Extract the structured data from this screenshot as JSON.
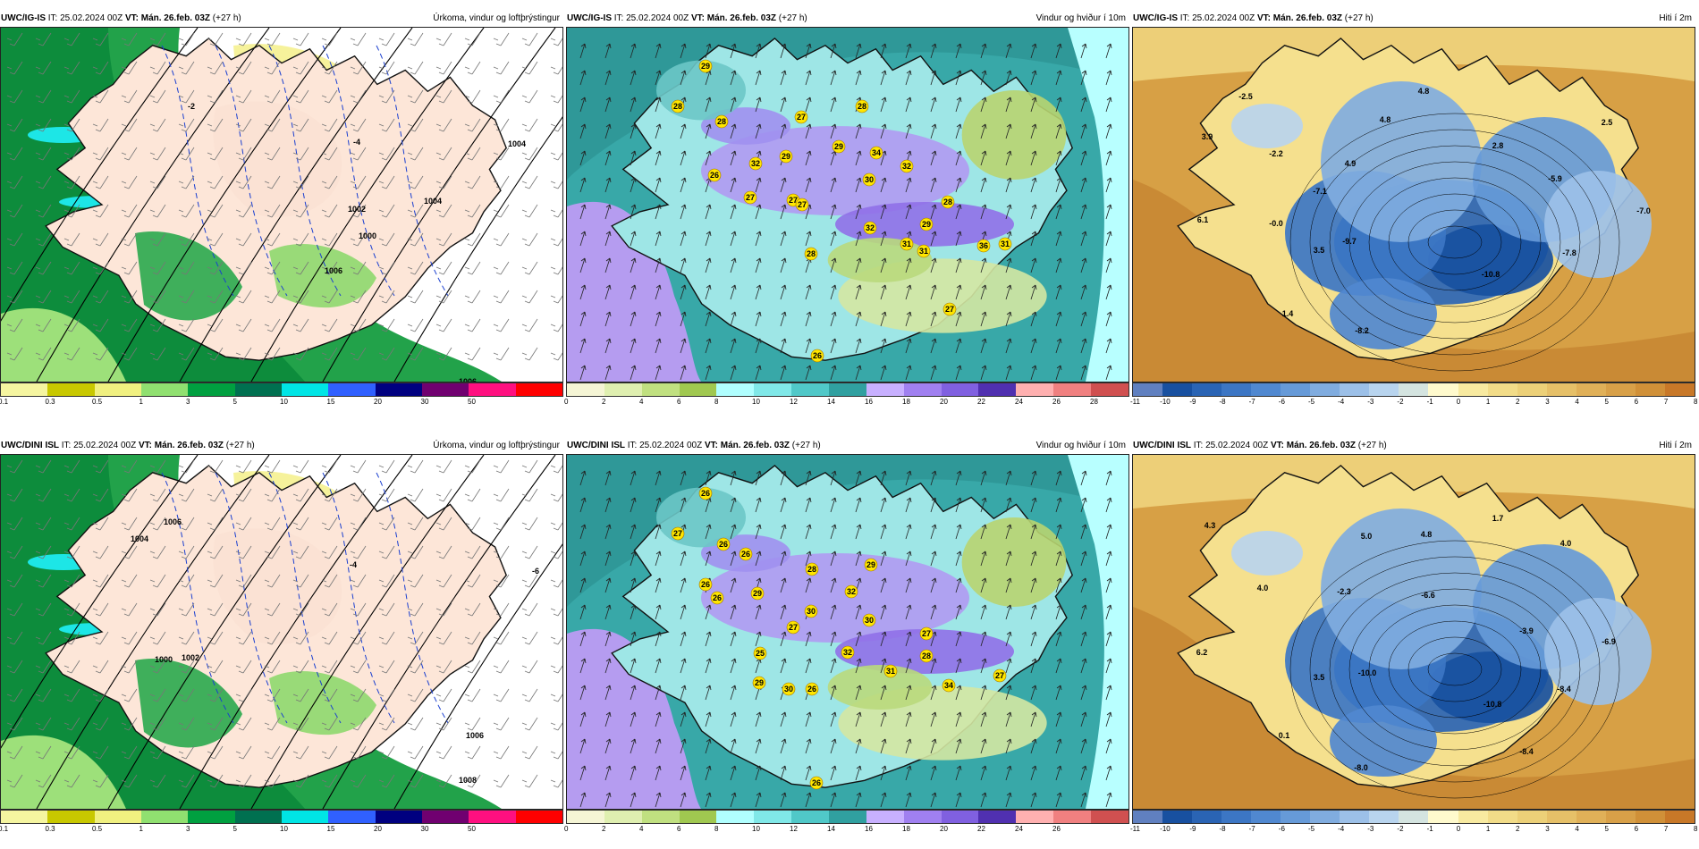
{
  "panels": [
    {
      "model": "UWC/IG-IS",
      "it_label": "IT:",
      "it_value": "25.02.2024 00Z",
      "vt_label": "VT:",
      "vt_value": "Mán. 26.feb. 03Z",
      "lead": "(+27 h)",
      "field": "Úrkoma, vindur og loftþrýstingur",
      "map_type": "precip",
      "legend": {
        "colors": [
          "#f5f5a0",
          "#c8c800",
          "#f0f080",
          "#90e070",
          "#00a040",
          "#007050",
          "#00e5e5",
          "#3060ff",
          "#000080",
          "#700070",
          "#ff1080",
          "#ff0000"
        ],
        "ticks": [
          "0.1",
          "0.3",
          "0.5",
          "1",
          "3",
          "5",
          "10",
          "15",
          "20",
          "30",
          "50"
        ]
      },
      "labels": [
        {
          "text": "1006"
        },
        {
          "text": "1004"
        },
        {
          "text": "1002"
        },
        {
          "text": "1000"
        },
        {
          "text": "-4"
        },
        {
          "text": "-2"
        },
        {
          "text": "1006"
        },
        {
          "text": "1004"
        }
      ]
    },
    {
      "model": "UWC/IG-IS",
      "it_label": "IT:",
      "it_value": "25.02.2024 00Z",
      "vt_label": "VT:",
      "vt_value": "Mán. 26.feb. 03Z",
      "lead": "(+27 h)",
      "field": "Vindur og hviður í 10m",
      "map_type": "wind",
      "legend": {
        "colors": [
          "#f5f5d5",
          "#dfefb0",
          "#c0e080",
          "#a0c850",
          "#b0ffff",
          "#80e8e8",
          "#50c8c8",
          "#30a0a0",
          "#c8b0ff",
          "#a080f0",
          "#8060e0",
          "#5030b0",
          "#ffb0b0",
          "#f08080",
          "#d05050"
        ],
        "ticks": [
          "0",
          "2",
          "4",
          "6",
          "8",
          "10",
          "12",
          "14",
          "16",
          "18",
          "20",
          "22",
          "24",
          "26",
          "28"
        ]
      },
      "labels": [
        {
          "text": "29"
        },
        {
          "text": "28"
        },
        {
          "text": "28"
        },
        {
          "text": "27"
        },
        {
          "text": "27"
        },
        {
          "text": "28"
        },
        {
          "text": "26"
        },
        {
          "text": "27"
        },
        {
          "text": "27"
        },
        {
          "text": "32"
        },
        {
          "text": "29"
        },
        {
          "text": "29"
        },
        {
          "text": "34"
        },
        {
          "text": "30"
        },
        {
          "text": "32"
        },
        {
          "text": "28"
        },
        {
          "text": "29"
        },
        {
          "text": "31"
        },
        {
          "text": "32"
        },
        {
          "text": "31"
        },
        {
          "text": "36"
        },
        {
          "text": "31"
        },
        {
          "text": "28"
        },
        {
          "text": "27"
        },
        {
          "text": "26"
        }
      ]
    },
    {
      "model": "UWC/IG-IS",
      "it_label": "IT:",
      "it_value": "25.02.2024 00Z",
      "vt_label": "VT:",
      "vt_value": "Mán. 26.feb. 03Z",
      "lead": "(+27 h)",
      "field": "Hiti í 2m",
      "map_type": "temp",
      "legend": {
        "colors": [
          "#6080c0",
          "#1850a0",
          "#2a64b4",
          "#3c76c4",
          "#5088d0",
          "#669ad8",
          "#80acdf",
          "#9cc0e8",
          "#b8d4ee",
          "#d4e4e0",
          "#fffacd",
          "#f8eaa0",
          "#f2dc88",
          "#ecd078",
          "#e6c068",
          "#e0b058",
          "#d8a048",
          "#d09038",
          "#c87828"
        ],
        "ticks": [
          "-11",
          "-10",
          "-9",
          "-8",
          "-7",
          "-6",
          "-5",
          "-4",
          "-3",
          "-2",
          "-1",
          "0",
          "1",
          "2",
          "3",
          "4",
          "5",
          "6",
          "7",
          "8"
        ]
      },
      "labels": [
        {
          "text": "-2.5"
        },
        {
          "text": "4.8"
        },
        {
          "text": "3.9"
        },
        {
          "text": "-2.2"
        },
        {
          "text": "4.8"
        },
        {
          "text": "2.5"
        },
        {
          "text": "4.9"
        },
        {
          "text": "2.8"
        },
        {
          "text": "-7.1"
        },
        {
          "text": "-5.9"
        },
        {
          "text": "6.1"
        },
        {
          "text": "-0.0"
        },
        {
          "text": "-7.0"
        },
        {
          "text": "-9.7"
        },
        {
          "text": "3.5"
        },
        {
          "text": "-10.8"
        },
        {
          "text": "-7.8"
        },
        {
          "text": "1.4"
        },
        {
          "text": "-8.2"
        }
      ]
    },
    {
      "model": "UWC/DINI ISL",
      "it_label": "IT:",
      "it_value": "25.02.2024 00Z",
      "vt_label": "VT:",
      "vt_value": "Mán. 26.feb. 03Z",
      "lead": "(+27 h)",
      "field": "Úrkoma, vindur og loftþrýstingur",
      "map_type": "precip",
      "legend": {
        "colors": [
          "#f5f5a0",
          "#c8c800",
          "#f0f080",
          "#90e070",
          "#00a040",
          "#007050",
          "#00e5e5",
          "#3060ff",
          "#000080",
          "#700070",
          "#ff1080",
          "#ff0000"
        ],
        "ticks": [
          "0.1",
          "0.3",
          "0.5",
          "1",
          "3",
          "5",
          "10",
          "15",
          "20",
          "30",
          "50"
        ]
      },
      "labels": [
        {
          "text": "1004"
        },
        {
          "text": "1006"
        },
        {
          "text": "1000"
        },
        {
          "text": "1002"
        },
        {
          "text": "-6"
        },
        {
          "text": "-4"
        },
        {
          "text": "1008"
        },
        {
          "text": "1006"
        }
      ]
    },
    {
      "model": "UWC/DINI ISL",
      "it_label": "IT:",
      "it_value": "25.02.2024 00Z",
      "vt_label": "VT:",
      "vt_value": "Mán. 26.feb. 03Z",
      "lead": "(+27 h)",
      "field": "Vindur og hviður í 10m",
      "map_type": "wind",
      "legend": {
        "colors": [
          "#f5f5d5",
          "#dfefb0",
          "#c0e080",
          "#a0c850",
          "#b0ffff",
          "#80e8e8",
          "#50c8c8",
          "#30a0a0",
          "#c8b0ff",
          "#a080f0",
          "#8060e0",
          "#5030b0",
          "#ffb0b0",
          "#f08080",
          "#d05050"
        ],
        "ticks": [
          "0",
          "2",
          "4",
          "6",
          "8",
          "10",
          "12",
          "14",
          "16",
          "18",
          "20",
          "22",
          "24",
          "26"
        ]
      },
      "labels": [
        {
          "text": "26"
        },
        {
          "text": "27"
        },
        {
          "text": "26"
        },
        {
          "text": "26"
        },
        {
          "text": "26"
        },
        {
          "text": "26"
        },
        {
          "text": "29"
        },
        {
          "text": "27"
        },
        {
          "text": "28"
        },
        {
          "text": "32"
        },
        {
          "text": "30"
        },
        {
          "text": "29"
        },
        {
          "text": "30"
        },
        {
          "text": "25"
        },
        {
          "text": "32"
        },
        {
          "text": "27"
        },
        {
          "text": "28"
        },
        {
          "text": "26"
        },
        {
          "text": "29"
        },
        {
          "text": "30"
        },
        {
          "text": "31"
        },
        {
          "text": "34"
        },
        {
          "text": "27"
        },
        {
          "text": "26"
        }
      ]
    },
    {
      "model": "UWC/DINI ISL",
      "it_label": "IT:",
      "it_value": "25.02.2024 00Z",
      "vt_label": "VT:",
      "vt_value": "Mán. 26.feb. 03Z",
      "lead": "(+27 h)",
      "field": "Hiti í 2m",
      "map_type": "temp",
      "legend": {
        "colors": [
          "#6080c0",
          "#1850a0",
          "#2a64b4",
          "#3c76c4",
          "#5088d0",
          "#669ad8",
          "#80acdf",
          "#9cc0e8",
          "#b8d4ee",
          "#d4e4e0",
          "#fffacd",
          "#f8eaa0",
          "#f2dc88",
          "#ecd078",
          "#e6c068",
          "#e0b058",
          "#d8a048",
          "#d09038",
          "#c87828"
        ],
        "ticks": [
          "-11",
          "-10",
          "-9",
          "-8",
          "-7",
          "-6",
          "-5",
          "-4",
          "-3",
          "-2",
          "-1",
          "0",
          "1",
          "2",
          "3",
          "4",
          "5",
          "6",
          "7",
          "8"
        ]
      },
      "labels": [
        {
          "text": "4.3"
        },
        {
          "text": "5.0"
        },
        {
          "text": "4.8"
        },
        {
          "text": "1.7"
        },
        {
          "text": "4.0"
        },
        {
          "text": "4.0"
        },
        {
          "text": "-2.3"
        },
        {
          "text": "-6.6"
        },
        {
          "text": "6.2"
        },
        {
          "text": "-3.9"
        },
        {
          "text": "-6.9"
        },
        {
          "text": "3.5"
        },
        {
          "text": "-10.0"
        },
        {
          "text": "-8.4"
        },
        {
          "text": "-10.8"
        },
        {
          "text": "0.1"
        },
        {
          "text": "-8.4"
        },
        {
          "text": "-8.0"
        }
      ]
    }
  ]
}
